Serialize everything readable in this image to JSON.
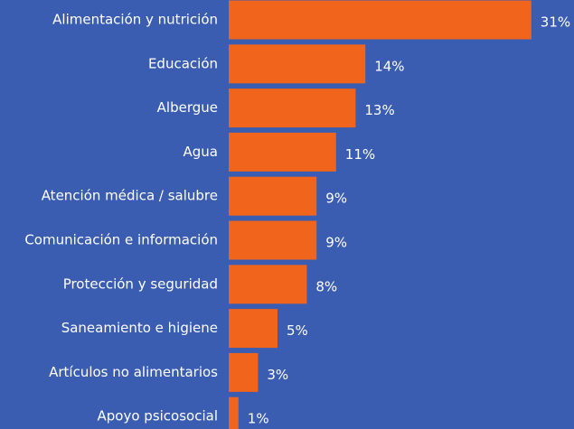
{
  "chart_data": {
    "type": "barh",
    "categories": [
      "Alimentación y nutrición",
      "Educación",
      "Albergue",
      "Agua",
      "Atención médica / salubre",
      "Comunicación e información",
      "Protección y seguridad",
      "Saneamiento e higiene",
      "Artículos no alimentarios",
      "Apoyo psicosocial"
    ],
    "values": [
      31,
      14,
      13,
      11,
      9,
      9,
      8,
      5,
      3,
      1
    ],
    "value_labels": [
      "31%",
      "14%",
      "13%",
      "11%",
      "9%",
      "9%",
      "8%",
      "5%",
      "3%",
      "1%"
    ],
    "color": "#f0641c"
  }
}
